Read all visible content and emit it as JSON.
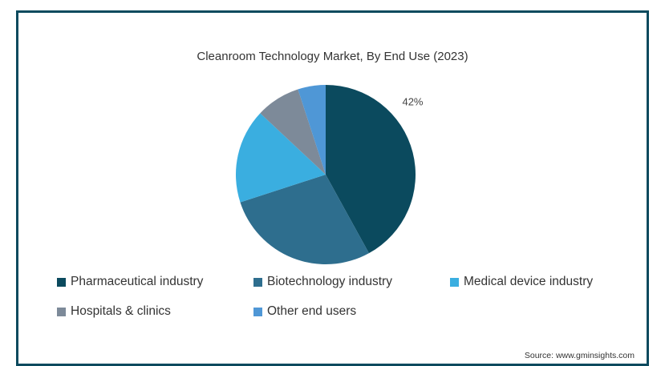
{
  "chart_data": {
    "type": "pie",
    "title": "Cleanroom Technology Market, By End Use (2023)",
    "start_angle": "12 o'clock, clockwise",
    "slices": [
      {
        "label": "Pharmaceutical industry",
        "value": 42,
        "color": "#0b4a5e",
        "data_label": "42%"
      },
      {
        "label": "Biotechnology industry",
        "value": 28,
        "color": "#2e6e8e",
        "data_label": ""
      },
      {
        "label": "Medical device industry",
        "value": 17,
        "color": "#3aaee0",
        "data_label": ""
      },
      {
        "label": "Hospitals & clinics",
        "value": 8,
        "color": "#7d8a99",
        "data_label": ""
      },
      {
        "label": "Other end users",
        "value": 5,
        "color": "#4f97d6",
        "data_label": ""
      }
    ],
    "legend_position": "bottom",
    "source": "Source: www.gminsights.com"
  }
}
